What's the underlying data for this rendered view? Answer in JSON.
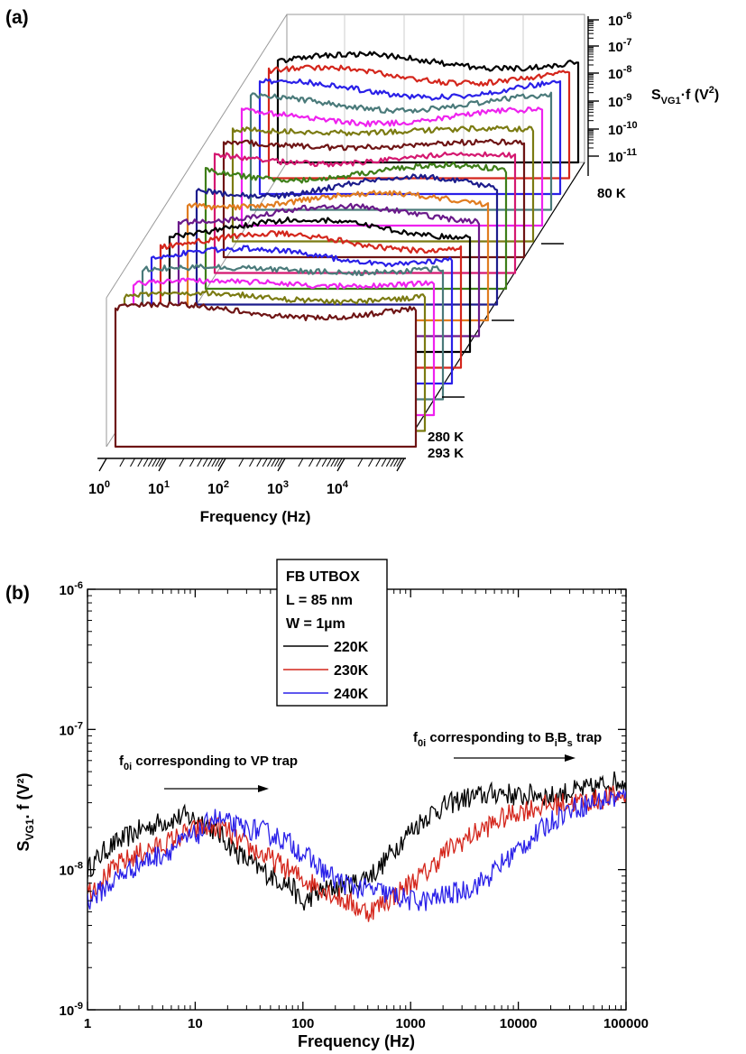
{
  "panel_a": {
    "label": "(a)",
    "chart_data": {
      "type": "line",
      "title": "",
      "xlabel": "Frequency (Hz)",
      "ylabel_main": "S",
      "ylabel_sub": "VG1",
      "ylabel_tail": "·f (V",
      "ylabel_sup": "2",
      "ylabel_end": ")",
      "x_scale": "log",
      "x_range": [
        1,
        100000
      ],
      "x_ticks": [
        {
          "base": "10",
          "exp": "0"
        },
        {
          "base": "10",
          "exp": "1"
        },
        {
          "base": "10",
          "exp": "2"
        },
        {
          "base": "10",
          "exp": "3"
        },
        {
          "base": "10",
          "exp": "4"
        }
      ],
      "z_scale": "log",
      "z_ticks": [
        {
          "base": "10",
          "exp": "-6"
        },
        {
          "base": "10",
          "exp": "-7"
        },
        {
          "base": "10",
          "exp": "-8"
        },
        {
          "base": "10",
          "exp": "-9"
        },
        {
          "base": "10",
          "exp": "-10"
        },
        {
          "base": "10",
          "exp": "-11"
        }
      ],
      "temperature_labels": [
        "80 K",
        "280 K",
        "293 K"
      ],
      "series_colors": [
        "#000000",
        "#d4261c",
        "#2a20e8",
        "#4a7a7a",
        "#ee22ee",
        "#7b7b12",
        "#6e1414",
        "#d41870",
        "#3e7e18",
        "#1c1c8c",
        "#e07c20",
        "#6a1a8a",
        "#000000",
        "#d4261c",
        "#2a20e8",
        "#4a7a7a",
        "#ee22ee",
        "#7b7b12",
        "#6e1414"
      ]
    }
  },
  "panel_b": {
    "label": "(b)",
    "legend": {
      "lines": [
        "FB UTBOX",
        "L = 85 nm",
        "W = 1µm"
      ],
      "entries": [
        {
          "name": "220K",
          "color": "#000000"
        },
        {
          "name": "230K",
          "color": "#d4261c"
        },
        {
          "name": "240K",
          "color": "#2a20e8"
        }
      ]
    },
    "annotations": {
      "vp": {
        "pre": "f",
        "sub": "0i",
        "post": " corresponding to VP trap"
      },
      "bb": {
        "pre": "f",
        "sub": "0i",
        "mid": " corresponding to B",
        "sub2": "i",
        "mid2": "B",
        "sub3": "s",
        "post": " trap"
      }
    },
    "chart_data": {
      "type": "line",
      "title": "",
      "xlabel": "Frequency (Hz)",
      "ylabel_main": "S",
      "ylabel_sub": "VG1",
      "ylabel_tail": ". f (V²)",
      "x_scale": "log",
      "y_scale": "log",
      "xlim": [
        1,
        100000
      ],
      "ylim": [
        1e-09,
        1e-06
      ],
      "x_tick_labels": [
        "1",
        "10",
        "100",
        "1000",
        "10000",
        "100000"
      ],
      "y_tick_labels": [
        {
          "base": "10",
          "exp": "-6"
        },
        {
          "base": "10",
          "exp": "-7"
        },
        {
          "base": "10",
          "exp": "-8"
        },
        {
          "base": "10",
          "exp": "-9"
        }
      ],
      "series": [
        {
          "name": "220K",
          "color": "#000000",
          "x": [
            1,
            1.5,
            2,
            3,
            5,
            8,
            12,
            18,
            25,
            40,
            60,
            80,
            100,
            120,
            150,
            200,
            300,
            500,
            700,
            1000,
            1500,
            2000,
            3000,
            5000,
            7000,
            10000,
            15000,
            20000,
            30000,
            50000,
            70000,
            100000
          ],
          "y": [
            1e-08,
            1.4e-08,
            1.6e-08,
            1.9e-08,
            2.2e-08,
            2.4e-08,
            2.2e-08,
            1.7e-08,
            1.3e-08,
            1e-08,
            8.5e-09,
            7.5e-09,
            5.5e-09,
            6.5e-09,
            7e-09,
            7.5e-09,
            8e-09,
            1e-08,
            1.4e-08,
            1.9e-08,
            2.5e-08,
            2.8e-08,
            3.2e-08,
            3.4e-08,
            3.6e-08,
            3.3e-08,
            3.5e-08,
            3.3e-08,
            3.6e-08,
            3.8e-08,
            4.2e-08,
            4.3e-08
          ]
        },
        {
          "name": "230K",
          "color": "#d4261c",
          "x": [
            1,
            1.5,
            2,
            3,
            5,
            8,
            12,
            18,
            25,
            40,
            60,
            80,
            100,
            150,
            200,
            300,
            400,
            500,
            700,
            1000,
            1500,
            2000,
            3000,
            5000,
            7000,
            10000,
            15000,
            20000,
            30000,
            50000,
            70000,
            100000
          ],
          "y": [
            7e-09,
            9e-09,
            1.1e-08,
            1.3e-08,
            1.5e-08,
            1.8e-08,
            2e-08,
            2e-08,
            1.6e-08,
            1.3e-08,
            1.1e-08,
            9.5e-09,
            8.5e-09,
            7.5e-09,
            6.5e-09,
            5.5e-09,
            5e-09,
            5.5e-09,
            6.5e-09,
            8e-09,
            1e-08,
            1.3e-08,
            1.6e-08,
            2e-08,
            2.3e-08,
            2.6e-08,
            2.8e-08,
            2.9e-08,
            3e-08,
            3.1e-08,
            3.3e-08,
            3.4e-08
          ]
        },
        {
          "name": "240K",
          "color": "#2a20e8",
          "x": [
            1,
            1.5,
            2,
            3,
            5,
            8,
            12,
            14,
            18,
            25,
            40,
            60,
            80,
            100,
            150,
            200,
            300,
            500,
            700,
            1000,
            1500,
            2000,
            3000,
            5000,
            7000,
            10000,
            15000,
            20000,
            30000,
            50000,
            70000,
            100000
          ],
          "y": [
            6e-09,
            7.5e-09,
            9e-09,
            1.1e-08,
            1.3e-08,
            1.6e-08,
            1.9e-08,
            2.4e-08,
            2.2e-08,
            2e-08,
            1.9e-08,
            1.7e-08,
            1.5e-08,
            1.3e-08,
            1e-08,
            8.5e-09,
            7.5e-09,
            7e-09,
            6.5e-09,
            6e-09,
            6e-09,
            6.5e-09,
            7e-09,
            8.5e-09,
            1.1e-08,
            1.4e-08,
            1.8e-08,
            2.2e-08,
            2.7e-08,
            3e-08,
            3.2e-08,
            3.3e-08
          ]
        }
      ]
    }
  }
}
